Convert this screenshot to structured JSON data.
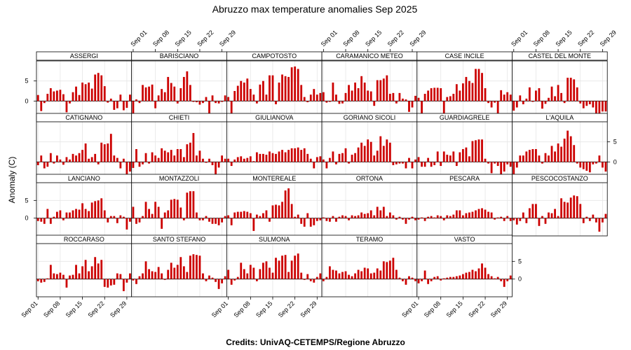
{
  "chart_data": {
    "type": "bar",
    "title": "Abruzzo max temperature anomalies Sep 2025",
    "ylabel": "Anomaly (C)",
    "xlabel": "",
    "credits": "Credits: UnivAQ-CETEMPS/Regione Abruzzo",
    "x_tick_labels": [
      "Sep 01",
      "Sep 08",
      "Sep 15",
      "Sep 22",
      "Sep 29"
    ],
    "x_tick_days": [
      1,
      8,
      15,
      22,
      29
    ],
    "y_ticks": [
      0,
      5
    ],
    "ylim": [
      -5,
      10
    ],
    "xlim": [
      0.5,
      30.5
    ],
    "colors": {
      "bar": "#cc0000",
      "zero_line": "#000000",
      "grid": "#e6e6e6",
      "strip": "#ffffff"
    },
    "panels": [
      {
        "name": "ASSERGI",
        "values": [
          1.5,
          -2.5,
          -0.5,
          1.8,
          3.2,
          2.4,
          2.6,
          2.8,
          1.7,
          -2.8,
          -0.6,
          2.2,
          3.6,
          1.5,
          4.6,
          4.2,
          4.6,
          3.1,
          6.6,
          7.0,
          6.4,
          3.7,
          -0.4,
          0.6,
          -2.2,
          -1.8,
          1.6,
          -2.3,
          -1.7,
          1.6
        ]
      },
      {
        "name": "BARISCIANO",
        "values": [
          -3.2,
          0.4,
          -0.5,
          4.0,
          3.4,
          3.6,
          4.1,
          -1.8,
          1.4,
          3.0,
          2.2,
          6.0,
          4.5,
          3.6,
          -0.6,
          3.2,
          6.0,
          7.4,
          4.0,
          -0.2,
          -0.3,
          -0.9,
          -0.5,
          1.0,
          -3.3,
          1.4,
          -0.5,
          -0.6,
          -0.2,
          1.4
        ]
      },
      {
        "name": "CAMPOTOSTO",
        "values": [
          1.0,
          -4.0,
          2.5,
          3.8,
          5.0,
          4.6,
          5.6,
          3.0,
          1.6,
          -0.6,
          4.1,
          5.0,
          1.6,
          6.4,
          6.4,
          -0.8,
          4.6,
          6.6,
          6.2,
          6.0,
          8.4,
          8.6,
          8.0,
          4.0,
          1.0,
          -0.3,
          1.6,
          3.0,
          1.6,
          2.0
        ]
      },
      {
        "name": "CARAMANICO METEO",
        "values": [
          2.2,
          -0.4,
          0.0,
          4.6,
          1.6,
          -0.7,
          -0.6,
          2.0,
          4.0,
          2.6,
          4.6,
          3.2,
          6.2,
          4.6,
          2.6,
          2.4,
          -1.2,
          5.2,
          5.2,
          5.6,
          6.4,
          1.8,
          2.0,
          -0.6,
          2.0,
          0.6,
          0.4,
          -2.7,
          -1.6,
          1.3
        ]
      },
      {
        "name": "CASE INCILE",
        "values": [
          0.8,
          -3.4,
          1.8,
          2.6,
          3.2,
          3.3,
          3.3,
          3.2,
          -4.3,
          1.0,
          1.2,
          1.8,
          4.2,
          2.6,
          4.4,
          6.0,
          5.0,
          4.5,
          8.0,
          8.0,
          7.0,
          3.2,
          -0.5,
          -1.6,
          -0.4,
          -3.3,
          2.7,
          1.6,
          2.2,
          1.6
        ]
      },
      {
        "name": "CASTEL DEL MONTE",
        "values": [
          -2.4,
          -1.6,
          1.4,
          -0.8,
          0.6,
          3.4,
          0.0,
          2.6,
          3.2,
          -1.9,
          -0.7,
          0.8,
          3.6,
          1.2,
          4.0,
          2.0,
          -0.5,
          5.8,
          5.8,
          5.4,
          3.4,
          -0.6,
          -1.8,
          -1.2,
          -0.8,
          -1.6,
          -3.6,
          -3.4,
          -2.6,
          -2.6
        ]
      },
      {
        "name": "CATIGNANO",
        "values": [
          -0.8,
          1.6,
          -1.6,
          -1.2,
          2.2,
          -0.4,
          1.6,
          0.6,
          -0.7,
          1.2,
          0.6,
          2.0,
          1.6,
          2.2,
          3.0,
          4.6,
          0.8,
          1.2,
          2.0,
          -0.6,
          4.8,
          4.4,
          4.6,
          7.0,
          1.6,
          1.0,
          -1.6,
          0.8,
          -3.4,
          -2.4
        ]
      },
      {
        "name": "CHIETI",
        "values": [
          -1.5,
          3.2,
          -1.2,
          -0.6,
          2.2,
          -0.4,
          2.4,
          1.6,
          1.0,
          3.4,
          2.8,
          2.4,
          3.0,
          1.6,
          3.2,
          3.2,
          1.2,
          4.4,
          4.8,
          7.2,
          1.6,
          2.8,
          0.8,
          0.0,
          0.8,
          -0.8,
          -3.2,
          -1.4,
          1.6,
          0.8
        ]
      },
      {
        "name": "GIULIANOVA",
        "values": [
          0.8,
          -1.0,
          0.6,
          1.2,
          1.4,
          0.8,
          1.0,
          1.4,
          0.2,
          2.4,
          2.0,
          2.0,
          1.8,
          2.6,
          2.2,
          2.0,
          2.6,
          3.0,
          2.4,
          3.0,
          3.4,
          3.4,
          3.6,
          3.0,
          3.4,
          2.0,
          0.8,
          -1.6,
          1.2,
          1.4
        ]
      },
      {
        "name": "GORIANO SICOLI",
        "values": [
          0.6,
          -1.6,
          1.0,
          2.6,
          -0.6,
          2.0,
          2.2,
          3.4,
          -0.4,
          1.8,
          2.2,
          3.6,
          4.8,
          4.0,
          5.6,
          5.0,
          1.6,
          2.8,
          6.4,
          4.0,
          5.6,
          4.8,
          -0.8,
          -0.6,
          -0.4,
          -0.4,
          -1.6,
          1.0,
          -1.6,
          0.6
        ]
      },
      {
        "name": "GUARDIAGRELE",
        "values": [
          1.2,
          -1.2,
          -1.2,
          1.0,
          -1.2,
          -0.8,
          2.6,
          -1.0,
          2.6,
          1.8,
          1.6,
          2.6,
          -1.0,
          2.4,
          3.2,
          3.6,
          1.4,
          5.2,
          5.4,
          5.6,
          5.6,
          0.8,
          -0.4,
          -2.8,
          -0.4,
          -1.0,
          -4.2,
          -2.4,
          -0.6,
          -1.2
        ]
      },
      {
        "name": "L'AQUILA",
        "values": [
          -3.0,
          -1.4,
          1.6,
          1.6,
          2.6,
          3.0,
          3.2,
          3.2,
          1.6,
          -0.4,
          2.2,
          1.6,
          4.0,
          2.6,
          4.6,
          3.8,
          5.8,
          7.8,
          6.4,
          4.2,
          -0.4,
          -1.4,
          -1.8,
          -2.2,
          -2.6,
          -0.6,
          -0.4,
          1.6,
          -1.4,
          -2.4
        ]
      },
      {
        "name": "LANCIANO",
        "values": [
          -0.8,
          -1.0,
          -1.6,
          2.6,
          -1.6,
          0.4,
          1.8,
          2.2,
          -0.6,
          1.6,
          1.6,
          2.2,
          2.6,
          2.4,
          4.2,
          2.6,
          2.0,
          4.4,
          4.8,
          5.0,
          5.6,
          2.2,
          -1.2,
          0.6,
          0.6,
          -1.4,
          0.8,
          0.4,
          -3.2,
          -1.0
        ]
      },
      {
        "name": "MONTAZZOLI",
        "values": [
          3.2,
          -1.6,
          -1.2,
          0.6,
          4.6,
          2.6,
          1.2,
          4.6,
          3.2,
          -3.0,
          1.6,
          2.2,
          5.2,
          5.4,
          5.2,
          3.0,
          -0.6,
          7.2,
          7.6,
          7.6,
          1.6,
          -0.6,
          -0.6,
          0.6,
          -1.0,
          -1.6,
          -1.6,
          -2.0,
          -1.2,
          0.6
        ]
      },
      {
        "name": "MONTEREALE",
        "values": [
          0.8,
          -2.0,
          1.6,
          1.8,
          1.8,
          2.0,
          1.8,
          1.4,
          -3.6,
          1.0,
          0.6,
          1.4,
          2.2,
          -1.0,
          3.6,
          3.8,
          3.6,
          4.6,
          7.8,
          8.4,
          4.0,
          0.4,
          1.0,
          -1.6,
          -2.4,
          1.4,
          -2.4,
          -2.0,
          -0.8,
          -0.6
        ]
      },
      {
        "name": "ORTONA",
        "values": [
          0.2,
          -0.8,
          -1.0,
          0.6,
          -1.0,
          0.4,
          0.8,
          0.6,
          -0.6,
          0.8,
          0.6,
          0.8,
          1.6,
          1.2,
          1.4,
          2.2,
          0.8,
          3.2,
          2.2,
          3.2,
          0.6,
          1.6,
          0.8,
          -0.4,
          0.4,
          -0.4,
          -1.6,
          -0.4,
          0.4,
          -0.6
        ]
      },
      {
        "name": "PESCARA",
        "values": [
          -0.4,
          0.2,
          -0.8,
          0.4,
          0.6,
          0.2,
          0.8,
          0.6,
          -0.6,
          0.8,
          0.6,
          1.0,
          2.2,
          2.2,
          0.8,
          1.4,
          1.6,
          1.8,
          2.2,
          2.6,
          2.8,
          2.4,
          1.8,
          1.6,
          -0.4,
          0.2,
          0.4,
          -0.8,
          0.6,
          -0.8
        ]
      },
      {
        "name": "PESCOCOSTANZO",
        "values": [
          -0.6,
          -1.8,
          -0.8,
          1.6,
          -1.4,
          2.8,
          4.0,
          4.0,
          -2.2,
          0.6,
          -1.6,
          1.6,
          1.4,
          2.6,
          0.6,
          5.6,
          4.6,
          4.4,
          5.8,
          6.4,
          6.2,
          4.0,
          -1.4,
          0.4,
          -0.8,
          1.0,
          -1.2,
          -3.8,
          -1.2,
          1.2
        ]
      },
      {
        "name": "ROCCARASO",
        "values": [
          -0.6,
          -1.0,
          -0.8,
          0.2,
          4.0,
          1.6,
          1.4,
          1.8,
          1.2,
          -2.4,
          1.0,
          1.2,
          4.0,
          1.6,
          3.6,
          5.4,
          2.2,
          3.6,
          6.2,
          4.4,
          5.4,
          -2.2,
          -2.4,
          -1.8,
          -1.6,
          1.6,
          1.4,
          -3.4,
          -1.0,
          1.6
        ]
      },
      {
        "name": "SANTO STEFANO",
        "values": [
          -0.4,
          -1.4,
          0.8,
          1.6,
          5.0,
          2.8,
          2.2,
          2.0,
          3.4,
          1.6,
          -0.2,
          2.6,
          4.6,
          3.2,
          4.0,
          6.2,
          3.6,
          2.0,
          6.6,
          7.0,
          6.8,
          6.6,
          1.6,
          -0.6,
          1.0,
          0.4,
          -0.8,
          -2.8,
          -1.2,
          0.8
        ]
      },
      {
        "name": "SULMONA",
        "values": [
          2.6,
          -1.6,
          -0.4,
          0.6,
          4.6,
          2.8,
          1.6,
          4.0,
          3.2,
          -0.6,
          2.8,
          4.6,
          5.0,
          3.2,
          1.8,
          6.0,
          5.2,
          6.6,
          6.8,
          2.0,
          5.2,
          6.6,
          7.2,
          1.8,
          -0.2,
          1.4,
          -0.6,
          -1.0,
          0.6,
          1.6
        ]
      },
      {
        "name": "TERAMO",
        "values": [
          -0.6,
          0.6,
          3.6,
          2.6,
          2.4,
          1.6,
          2.0,
          2.2,
          1.2,
          0.8,
          1.6,
          2.6,
          2.2,
          3.2,
          3.0,
          1.6,
          1.8,
          3.0,
          2.4,
          5.0,
          4.8,
          5.2,
          6.0,
          2.6,
          0.4,
          -0.6,
          -1.6,
          0.8,
          0.4,
          -0.6
        ]
      },
      {
        "name": "VASTO",
        "values": [
          -1.2,
          -0.6,
          2.4,
          -1.4,
          -0.6,
          0.6,
          0.8,
          -0.4,
          0.2,
          0.4,
          0.6,
          0.6,
          0.8,
          1.0,
          1.4,
          1.8,
          2.0,
          2.6,
          2.2,
          3.0,
          4.4,
          3.2,
          1.4,
          0.8,
          0.2,
          0.6,
          -0.6,
          -2.2,
          -0.6,
          1.0
        ]
      }
    ]
  }
}
